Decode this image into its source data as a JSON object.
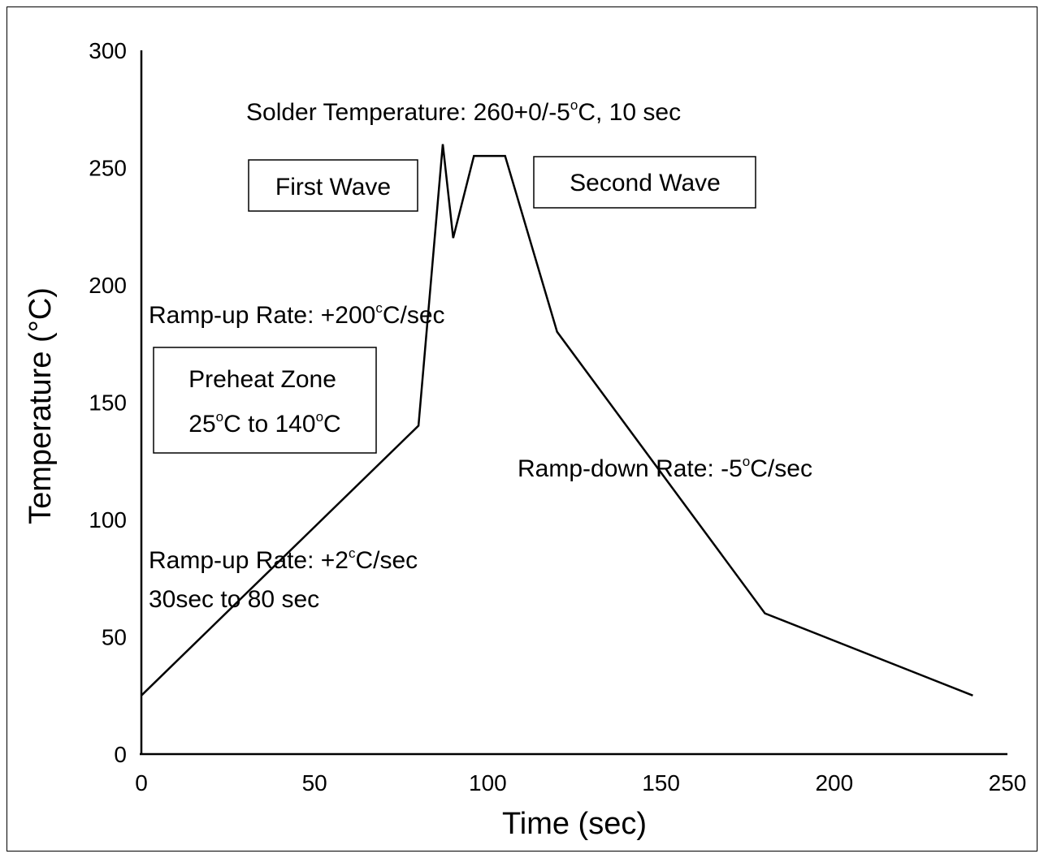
{
  "chart_data": {
    "type": "line",
    "title": "",
    "xlabel": "Time (sec)",
    "ylabel": "Temperature (°C)",
    "xlim": [
      0,
      250
    ],
    "ylim": [
      0,
      300
    ],
    "x_ticks": [
      0,
      50,
      100,
      150,
      200,
      250
    ],
    "y_ticks": [
      0,
      50,
      100,
      150,
      200,
      250,
      300
    ],
    "grid": false,
    "legend": "none",
    "line_color": "#000000",
    "series": [
      {
        "x": [
          0,
          80,
          87,
          90,
          96,
          105,
          120,
          180,
          240
        ],
        "y": [
          25,
          140,
          260,
          220,
          255,
          255,
          180,
          60,
          25
        ]
      }
    ],
    "annotations": {
      "solder_temp": {
        "prefix": "Solder Temperature: 260+0/-5",
        "sup": "o",
        "suffix": "C, 10 sec"
      },
      "first_wave": "First Wave",
      "second_wave": "Second Wave",
      "ramp_up_fast": {
        "prefix": "Ramp-up Rate: +200",
        "sup": "c",
        "suffix": "C/sec"
      },
      "preheat_title": "Preheat Zone",
      "preheat_range": {
        "a": "25",
        "sup1": "o",
        "b": "C to 140",
        "sup2": "o",
        "c": "C"
      },
      "ramp_down": {
        "prefix": "Ramp-down Rate: -5",
        "sup": "o",
        "suffix": "C/sec"
      },
      "ramp_up_slow": {
        "prefix": "Ramp-up Rate: +2",
        "sup": "c",
        "suffix": "C/sec"
      },
      "ramp_up_slow_time": "30sec to 80 sec"
    }
  }
}
